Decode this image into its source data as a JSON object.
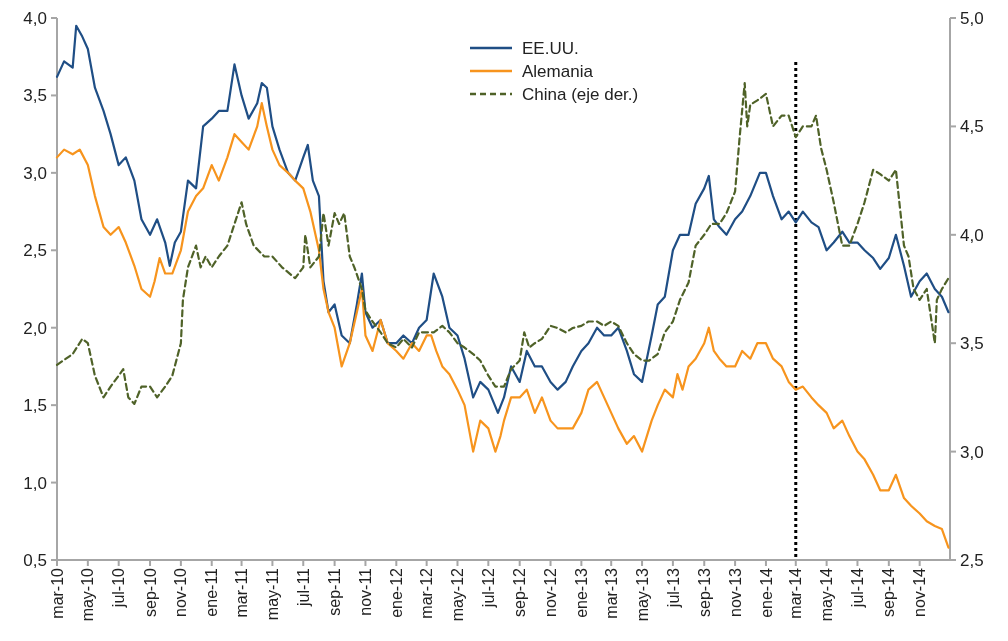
{
  "chart_data": {
    "type": "line",
    "legend": "top",
    "grid": false,
    "xlim": [
      "2010-03-01",
      "2014-12-31"
    ],
    "xticks": [
      {
        "value": "2010-03-01",
        "label": "mar-10"
      },
      {
        "value": "2010-05-01",
        "label": "may-10"
      },
      {
        "value": "2010-07-01",
        "label": "jul-10"
      },
      {
        "value": "2010-09-01",
        "label": "sep-10"
      },
      {
        "value": "2010-11-01",
        "label": "nov-10"
      },
      {
        "value": "2011-01-01",
        "label": "ene-11"
      },
      {
        "value": "2011-03-01",
        "label": "mar-11"
      },
      {
        "value": "2011-05-01",
        "label": "may-11"
      },
      {
        "value": "2011-07-01",
        "label": "jul-11"
      },
      {
        "value": "2011-09-01",
        "label": "sep-11"
      },
      {
        "value": "2011-11-01",
        "label": "nov-11"
      },
      {
        "value": "2012-01-01",
        "label": "ene-12"
      },
      {
        "value": "2012-03-01",
        "label": "mar-12"
      },
      {
        "value": "2012-05-01",
        "label": "may-12"
      },
      {
        "value": "2012-07-01",
        "label": "jul-12"
      },
      {
        "value": "2012-09-01",
        "label": "sep-12"
      },
      {
        "value": "2012-11-01",
        "label": "nov-12"
      },
      {
        "value": "2013-01-01",
        "label": "ene-13"
      },
      {
        "value": "2013-03-01",
        "label": "mar-13"
      },
      {
        "value": "2013-05-01",
        "label": "may-13"
      },
      {
        "value": "2013-07-01",
        "label": "jul-13"
      },
      {
        "value": "2013-09-01",
        "label": "sep-13"
      },
      {
        "value": "2013-11-01",
        "label": "nov-13"
      },
      {
        "value": "2014-01-01",
        "label": "ene-14"
      },
      {
        "value": "2014-03-01",
        "label": "mar-14"
      },
      {
        "value": "2014-05-01",
        "label": "may-14"
      },
      {
        "value": "2014-07-01",
        "label": "jul-14"
      },
      {
        "value": "2014-09-01",
        "label": "sep-14"
      },
      {
        "value": "2014-11-01",
        "label": "nov-14"
      }
    ],
    "ylim": [
      0.5,
      4.0
    ],
    "yticks": [
      {
        "value": 0.5,
        "label": "0,5"
      },
      {
        "value": 1.0,
        "label": "1,0"
      },
      {
        "value": 1.5,
        "label": "1,5"
      },
      {
        "value": 2.0,
        "label": "2,0"
      },
      {
        "value": 2.5,
        "label": "2,5"
      },
      {
        "value": 3.0,
        "label": "3,0"
      },
      {
        "value": 3.5,
        "label": "3,5"
      },
      {
        "value": 4.0,
        "label": "4,0"
      }
    ],
    "y2lim": [
      2.5,
      5.0
    ],
    "y2ticks": [
      {
        "value": 2.5,
        "label": "2,5"
      },
      {
        "value": 3.0,
        "label": "3,0"
      },
      {
        "value": 3.5,
        "label": "3,5"
      },
      {
        "value": 4.0,
        "label": "4,0"
      },
      {
        "value": 4.5,
        "label": "4,5"
      },
      {
        "value": 5.0,
        "label": "5,0"
      }
    ],
    "ref_lines": [
      {
        "axis": "x",
        "value": "2014-03-01",
        "color": "#000000",
        "line_style": "dotted"
      }
    ],
    "series": [
      {
        "name": "EE.UU.",
        "color": "#1f4e85",
        "line_style": "solid",
        "x": [
          "2010-03-01",
          "2010-03-15",
          "2010-04-01",
          "2010-04-08",
          "2010-04-20",
          "2010-05-01",
          "2010-05-15",
          "2010-06-01",
          "2010-06-15",
          "2010-07-01",
          "2010-07-15",
          "2010-08-01",
          "2010-08-15",
          "2010-09-01",
          "2010-09-15",
          "2010-10-01",
          "2010-10-10",
          "2010-10-20",
          "2010-11-01",
          "2010-11-15",
          "2010-12-01",
          "2010-12-15",
          "2011-01-01",
          "2011-01-15",
          "2011-02-01",
          "2011-02-15",
          "2011-03-01",
          "2011-03-15",
          "2011-04-01",
          "2011-04-10",
          "2011-04-20",
          "2011-05-01",
          "2011-05-15",
          "2011-06-01",
          "2011-06-15",
          "2011-07-01",
          "2011-07-10",
          "2011-07-20",
          "2011-08-01",
          "2011-08-10",
          "2011-08-20",
          "2011-09-01",
          "2011-09-15",
          "2011-10-01",
          "2011-10-15",
          "2011-10-25",
          "2011-11-01",
          "2011-11-15",
          "2011-12-01",
          "2011-12-15",
          "2012-01-01",
          "2012-01-15",
          "2012-02-01",
          "2012-02-15",
          "2012-03-01",
          "2012-03-15",
          "2012-04-01",
          "2012-04-15",
          "2012-05-01",
          "2012-05-15",
          "2012-06-01",
          "2012-06-15",
          "2012-07-01",
          "2012-07-20",
          "2012-08-01",
          "2012-08-15",
          "2012-09-01",
          "2012-09-15",
          "2012-10-01",
          "2012-10-15",
          "2012-11-01",
          "2012-11-15",
          "2012-12-01",
          "2012-12-15",
          "2013-01-01",
          "2013-01-15",
          "2013-02-01",
          "2013-02-15",
          "2013-03-01",
          "2013-03-15",
          "2013-04-01",
          "2013-04-15",
          "2013-05-01",
          "2013-05-20",
          "2013-06-01",
          "2013-06-15",
          "2013-07-01",
          "2013-07-15",
          "2013-08-01",
          "2013-08-15",
          "2013-09-01",
          "2013-09-10",
          "2013-09-20",
          "2013-10-01",
          "2013-10-15",
          "2013-11-01",
          "2013-11-15",
          "2013-12-01",
          "2013-12-20",
          "2014-01-01",
          "2014-01-15",
          "2014-02-01",
          "2014-02-15",
          "2014-03-01",
          "2014-03-15",
          "2014-04-01",
          "2014-04-15",
          "2014-05-01",
          "2014-05-15",
          "2014-06-01",
          "2014-06-15",
          "2014-07-01",
          "2014-07-15",
          "2014-08-01",
          "2014-08-15",
          "2014-09-01",
          "2014-09-15",
          "2014-10-01",
          "2014-10-15",
          "2014-11-01",
          "2014-11-15",
          "2014-12-01",
          "2014-12-15",
          "2014-12-28"
        ],
        "values": [
          3.62,
          3.72,
          3.68,
          3.95,
          3.88,
          3.8,
          3.55,
          3.4,
          3.25,
          3.05,
          3.1,
          2.95,
          2.7,
          2.6,
          2.7,
          2.55,
          2.4,
          2.55,
          2.62,
          2.95,
          2.9,
          3.3,
          3.35,
          3.4,
          3.4,
          3.7,
          3.5,
          3.35,
          3.45,
          3.58,
          3.55,
          3.3,
          3.15,
          3.0,
          2.95,
          3.1,
          3.18,
          2.95,
          2.85,
          2.3,
          2.1,
          2.15,
          1.95,
          1.9,
          2.15,
          2.35,
          2.1,
          2.0,
          2.05,
          1.9,
          1.9,
          1.95,
          1.9,
          2.0,
          2.05,
          2.35,
          2.2,
          2.0,
          1.95,
          1.8,
          1.55,
          1.65,
          1.6,
          1.45,
          1.55,
          1.75,
          1.65,
          1.85,
          1.75,
          1.75,
          1.65,
          1.6,
          1.65,
          1.75,
          1.85,
          1.9,
          2.0,
          1.95,
          1.95,
          2.0,
          1.85,
          1.7,
          1.65,
          1.95,
          2.15,
          2.2,
          2.5,
          2.6,
          2.6,
          2.8,
          2.9,
          2.98,
          2.7,
          2.65,
          2.6,
          2.7,
          2.75,
          2.85,
          3.0,
          3.0,
          2.85,
          2.7,
          2.75,
          2.68,
          2.75,
          2.68,
          2.65,
          2.5,
          2.55,
          2.62,
          2.55,
          2.55,
          2.5,
          2.45,
          2.38,
          2.45,
          2.6,
          2.4,
          2.2,
          2.3,
          2.35,
          2.25,
          2.2,
          2.1
        ]
      },
      {
        "name": "Alemania",
        "color": "#f7941d",
        "line_style": "solid",
        "x": [
          "2010-03-01",
          "2010-03-15",
          "2010-04-01",
          "2010-04-15",
          "2010-05-01",
          "2010-05-15",
          "2010-06-01",
          "2010-06-15",
          "2010-07-01",
          "2010-07-15",
          "2010-08-01",
          "2010-08-15",
          "2010-09-01",
          "2010-09-10",
          "2010-09-20",
          "2010-10-01",
          "2010-10-15",
          "2010-11-01",
          "2010-11-15",
          "2010-12-01",
          "2010-12-15",
          "2011-01-01",
          "2011-01-15",
          "2011-02-01",
          "2011-02-15",
          "2011-03-01",
          "2011-03-15",
          "2011-04-01",
          "2011-04-10",
          "2011-04-20",
          "2011-05-01",
          "2011-05-15",
          "2011-06-01",
          "2011-06-15",
          "2011-07-01",
          "2011-07-15",
          "2011-08-01",
          "2011-08-10",
          "2011-08-20",
          "2011-09-01",
          "2011-09-15",
          "2011-10-01",
          "2011-10-15",
          "2011-10-25",
          "2011-11-01",
          "2011-11-15",
          "2011-12-01",
          "2011-12-15",
          "2012-01-01",
          "2012-01-15",
          "2012-02-01",
          "2012-02-15",
          "2012-03-01",
          "2012-03-10",
          "2012-03-20",
          "2012-04-01",
          "2012-04-15",
          "2012-05-01",
          "2012-05-15",
          "2012-06-01",
          "2012-06-15",
          "2012-07-01",
          "2012-07-15",
          "2012-07-25",
          "2012-08-01",
          "2012-08-15",
          "2012-09-01",
          "2012-09-15",
          "2012-10-01",
          "2012-10-15",
          "2012-11-01",
          "2012-11-15",
          "2012-12-01",
          "2012-12-15",
          "2013-01-01",
          "2013-01-15",
          "2013-02-01",
          "2013-02-15",
          "2013-03-01",
          "2013-03-15",
          "2013-04-01",
          "2013-04-15",
          "2013-05-01",
          "2013-05-20",
          "2013-06-01",
          "2013-06-15",
          "2013-07-01",
          "2013-07-10",
          "2013-07-20",
          "2013-08-01",
          "2013-08-15",
          "2013-09-01",
          "2013-09-10",
          "2013-09-20",
          "2013-10-01",
          "2013-10-15",
          "2013-11-01",
          "2013-11-15",
          "2013-12-01",
          "2013-12-15",
          "2014-01-01",
          "2014-01-15",
          "2014-02-01",
          "2014-02-15",
          "2014-03-01",
          "2014-03-15",
          "2014-04-01",
          "2014-04-15",
          "2014-05-01",
          "2014-05-15",
          "2014-06-01",
          "2014-06-15",
          "2014-07-01",
          "2014-07-15",
          "2014-08-01",
          "2014-08-15",
          "2014-09-01",
          "2014-09-15",
          "2014-10-01",
          "2014-10-15",
          "2014-11-01",
          "2014-11-15",
          "2014-12-01",
          "2014-12-15",
          "2014-12-28"
        ],
        "values": [
          3.1,
          3.15,
          3.12,
          3.15,
          3.05,
          2.85,
          2.65,
          2.6,
          2.65,
          2.55,
          2.4,
          2.25,
          2.2,
          2.3,
          2.45,
          2.35,
          2.35,
          2.5,
          2.75,
          2.85,
          2.9,
          3.05,
          2.95,
          3.1,
          3.25,
          3.2,
          3.15,
          3.3,
          3.45,
          3.3,
          3.15,
          3.05,
          3.0,
          2.95,
          2.9,
          2.75,
          2.5,
          2.25,
          2.1,
          2.0,
          1.75,
          1.9,
          2.1,
          2.25,
          1.95,
          1.85,
          2.05,
          1.9,
          1.85,
          1.8,
          1.9,
          1.85,
          1.95,
          1.95,
          1.85,
          1.75,
          1.7,
          1.6,
          1.5,
          1.2,
          1.4,
          1.35,
          1.2,
          1.3,
          1.4,
          1.55,
          1.55,
          1.6,
          1.45,
          1.55,
          1.4,
          1.35,
          1.35,
          1.35,
          1.45,
          1.6,
          1.65,
          1.55,
          1.45,
          1.35,
          1.25,
          1.3,
          1.2,
          1.4,
          1.5,
          1.6,
          1.55,
          1.7,
          1.6,
          1.75,
          1.8,
          1.9,
          2.0,
          1.85,
          1.8,
          1.75,
          1.75,
          1.85,
          1.8,
          1.9,
          1.9,
          1.8,
          1.75,
          1.65,
          1.6,
          1.62,
          1.55,
          1.5,
          1.45,
          1.35,
          1.4,
          1.3,
          1.2,
          1.15,
          1.05,
          0.95,
          0.95,
          1.05,
          0.9,
          0.85,
          0.8,
          0.75,
          0.72,
          0.7,
          0.58
        ]
      },
      {
        "name": "China (eje der.)",
        "color": "#4f6228",
        "axis": "y2",
        "line_style": "dashed",
        "x": [
          "2010-03-01",
          "2010-04-01",
          "2010-04-20",
          "2010-05-01",
          "2010-05-15",
          "2010-06-01",
          "2010-06-15",
          "2010-07-01",
          "2010-07-10",
          "2010-07-20",
          "2010-08-01",
          "2010-08-15",
          "2010-09-01",
          "2010-09-15",
          "2010-10-01",
          "2010-10-15",
          "2010-11-01",
          "2010-11-05",
          "2010-11-15",
          "2010-12-01",
          "2010-12-10",
          "2010-12-20",
          "2011-01-01",
          "2011-01-15",
          "2011-02-01",
          "2011-02-15",
          "2011-03-01",
          "2011-03-10",
          "2011-03-25",
          "2011-04-15",
          "2011-05-01",
          "2011-05-20",
          "2011-06-15",
          "2011-07-01",
          "2011-07-05",
          "2011-07-15",
          "2011-08-01",
          "2011-08-10",
          "2011-08-20",
          "2011-09-01",
          "2011-09-10",
          "2011-09-20",
          "2011-10-01",
          "2011-10-10",
          "2011-10-25",
          "2011-11-01",
          "2011-11-15",
          "2011-12-01",
          "2011-12-15",
          "2012-01-01",
          "2012-01-15",
          "2012-02-01",
          "2012-02-15",
          "2012-03-01",
          "2012-03-15",
          "2012-04-01",
          "2012-04-15",
          "2012-05-01",
          "2012-05-15",
          "2012-06-01",
          "2012-06-15",
          "2012-07-01",
          "2012-07-15",
          "2012-08-01",
          "2012-08-15",
          "2012-09-01",
          "2012-09-10",
          "2012-09-20",
          "2012-10-01",
          "2012-10-15",
          "2012-11-01",
          "2012-11-15",
          "2012-12-01",
          "2012-12-15",
          "2013-01-01",
          "2013-01-15",
          "2013-02-01",
          "2013-02-15",
          "2013-03-01",
          "2013-03-15",
          "2013-04-01",
          "2013-04-15",
          "2013-05-01",
          "2013-05-15",
          "2013-06-01",
          "2013-06-15",
          "2013-07-01",
          "2013-07-15",
          "2013-08-01",
          "2013-08-15",
          "2013-09-01",
          "2013-09-15",
          "2013-10-01",
          "2013-10-15",
          "2013-11-01",
          "2013-11-10",
          "2013-11-20",
          "2013-11-25",
          "2013-12-01",
          "2013-12-15",
          "2014-01-01",
          "2014-01-15",
          "2014-02-01",
          "2014-02-15",
          "2014-03-01",
          "2014-03-15",
          "2014-04-01",
          "2014-04-10",
          "2014-04-20",
          "2014-05-01",
          "2014-05-15",
          "2014-06-01",
          "2014-06-15",
          "2014-07-01",
          "2014-07-15",
          "2014-08-01",
          "2014-08-15",
          "2014-09-01",
          "2014-09-15",
          "2014-10-01",
          "2014-10-10",
          "2014-10-20",
          "2014-11-01",
          "2014-11-15",
          "2014-12-01",
          "2014-12-05",
          "2014-12-15",
          "2014-12-28"
        ],
        "values": [
          3.4,
          3.45,
          3.52,
          3.5,
          3.35,
          3.25,
          3.3,
          3.35,
          3.38,
          3.25,
          3.22,
          3.3,
          3.3,
          3.25,
          3.3,
          3.35,
          3.5,
          3.7,
          3.85,
          3.95,
          3.85,
          3.9,
          3.85,
          3.9,
          3.95,
          4.05,
          4.15,
          4.05,
          3.95,
          3.9,
          3.9,
          3.85,
          3.8,
          3.85,
          4.0,
          3.85,
          3.9,
          4.1,
          3.95,
          4.1,
          4.05,
          4.1,
          3.9,
          3.85,
          3.75,
          3.65,
          3.6,
          3.55,
          3.5,
          3.48,
          3.52,
          3.48,
          3.55,
          3.55,
          3.55,
          3.58,
          3.55,
          3.5,
          3.48,
          3.45,
          3.42,
          3.35,
          3.3,
          3.3,
          3.38,
          3.42,
          3.55,
          3.48,
          3.5,
          3.52,
          3.58,
          3.57,
          3.55,
          3.57,
          3.58,
          3.6,
          3.6,
          3.58,
          3.6,
          3.58,
          3.5,
          3.45,
          3.42,
          3.42,
          3.45,
          3.55,
          3.6,
          3.7,
          3.78,
          3.95,
          4.0,
          4.05,
          4.05,
          4.1,
          4.2,
          4.45,
          4.7,
          4.5,
          4.6,
          4.62,
          4.65,
          4.5,
          4.55,
          4.55,
          4.45,
          4.5,
          4.5,
          4.55,
          4.4,
          4.3,
          4.15,
          3.95,
          3.95,
          4.05,
          4.15,
          4.3,
          4.28,
          4.25,
          4.3,
          3.95,
          3.9,
          3.75,
          3.7,
          3.75,
          3.5,
          3.7,
          3.75,
          3.8
        ]
      }
    ]
  }
}
